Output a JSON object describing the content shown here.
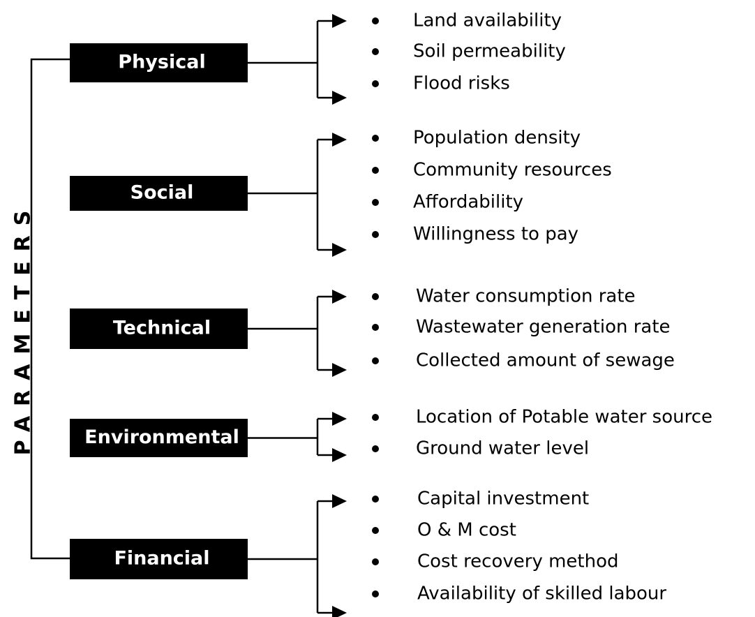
{
  "side_label": "PARAMETERS",
  "groups": [
    {
      "label": "Physical",
      "items": [
        "Land availability",
        "Soil permeability",
        "Flood risks"
      ]
    },
    {
      "label": "Social",
      "items": [
        "Population density",
        "Community resources",
        "Affordability",
        "Willingness to pay"
      ]
    },
    {
      "label": "Technical",
      "items": [
        "Water consumption rate",
        "Wastewater generation rate",
        "Collected amount of sewage"
      ]
    },
    {
      "label": "Environmental",
      "items": [
        "Location of Potable water source",
        "Ground water level"
      ]
    },
    {
      "label": "Financial",
      "items": [
        "Capital investment",
        "O & M cost",
        "Cost recovery method",
        "Availability of skilled labour"
      ]
    }
  ]
}
